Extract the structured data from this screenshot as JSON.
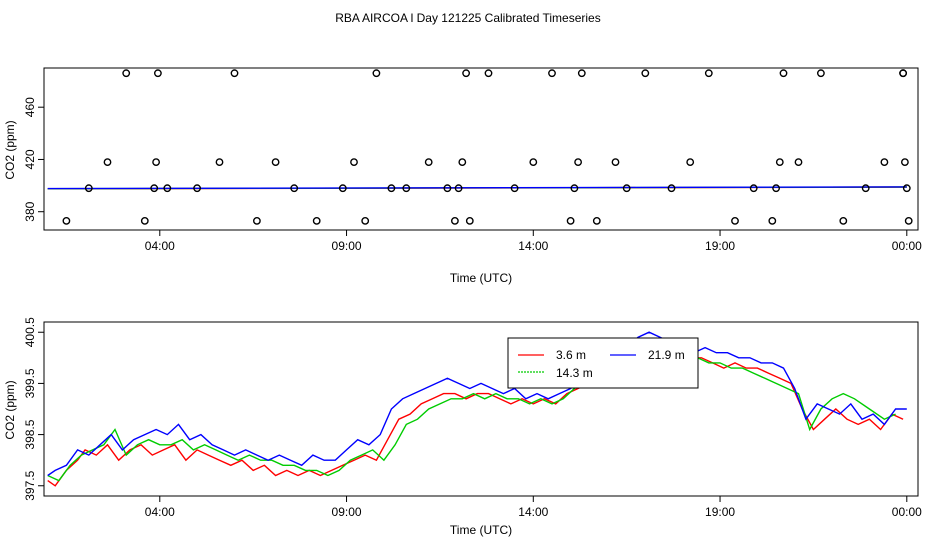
{
  "title": "RBA AIRCOA l  Day 121225  Calibrated Timeseries",
  "chart_data": [
    {
      "type": "scatter+line",
      "xlabel": "Time (UTC)",
      "ylabel": "CO2 (ppm)",
      "x_ticks": [
        4,
        9,
        14,
        19,
        24
      ],
      "x_tick_labels": [
        "04:00",
        "09:00",
        "14:00",
        "19:00",
        "00:00"
      ],
      "xlim": [
        0.9,
        24.3
      ],
      "y_ticks": [
        380,
        420,
        460
      ],
      "y_tick_labels": [
        "380",
        "420",
        "460"
      ],
      "ylim": [
        366,
        490
      ],
      "points": [
        [
          1.5,
          373
        ],
        [
          2.1,
          398
        ],
        [
          2.6,
          418
        ],
        [
          3.1,
          486
        ],
        [
          3.6,
          373
        ],
        [
          4.2,
          398
        ],
        [
          5.0,
          398
        ],
        [
          5.6,
          418
        ],
        [
          6.0,
          486
        ],
        [
          6.6,
          373
        ],
        [
          7.1,
          418
        ],
        [
          7.6,
          398
        ],
        [
          8.2,
          373
        ],
        [
          8.9,
          398
        ],
        [
          9.5,
          373
        ],
        [
          3.85,
          398
        ],
        [
          3.9,
          418
        ],
        [
          3.95,
          486
        ],
        [
          9.2,
          418
        ],
        [
          9.8,
          486
        ],
        [
          10.2,
          398
        ],
        [
          10.6,
          398
        ],
        [
          11.2,
          418
        ],
        [
          11.7,
          398
        ],
        [
          12.3,
          373
        ],
        [
          12.8,
          486
        ],
        [
          13.5,
          398
        ],
        [
          14.0,
          418
        ],
        [
          14.5,
          486
        ],
        [
          11.9,
          373
        ],
        [
          12.0,
          398
        ],
        [
          12.1,
          418
        ],
        [
          12.2,
          486
        ],
        [
          15.0,
          373
        ],
        [
          15.1,
          398
        ],
        [
          15.2,
          418
        ],
        [
          15.3,
          486
        ],
        [
          15.7,
          373
        ],
        [
          16.2,
          418
        ],
        [
          16.5,
          398
        ],
        [
          17.0,
          486
        ],
        [
          17.7,
          398
        ],
        [
          18.2,
          418
        ],
        [
          18.7,
          486
        ],
        [
          19.4,
          373
        ],
        [
          19.9,
          398
        ],
        [
          20.4,
          373
        ],
        [
          20.5,
          398
        ],
        [
          20.6,
          418
        ],
        [
          20.7,
          486
        ],
        [
          21.1,
          418
        ],
        [
          21.7,
          486
        ],
        [
          22.3,
          373
        ],
        [
          22.9,
          398
        ],
        [
          23.4,
          418
        ],
        [
          23.9,
          486
        ],
        [
          23.9,
          486
        ],
        [
          23.95,
          418
        ],
        [
          24.0,
          398
        ],
        [
          24.05,
          373
        ]
      ],
      "series": [
        {
          "color": "#ff0000",
          "x": [
            1.0,
            24.0
          ],
          "y": [
            397.5,
            398.8
          ]
        },
        {
          "color": "#00cc00",
          "x": [
            1.0,
            24.0
          ],
          "y": [
            397.6,
            398.9
          ]
        },
        {
          "color": "#0000ff",
          "x": [
            1.0,
            24.0
          ],
          "y": [
            397.7,
            399.0
          ]
        }
      ]
    },
    {
      "type": "line",
      "xlabel": "Time (UTC)",
      "ylabel": "CO2 (ppm)",
      "x_ticks": [
        4,
        9,
        14,
        19,
        24
      ],
      "x_tick_labels": [
        "04:00",
        "09:00",
        "14:00",
        "19:00",
        "00:00"
      ],
      "xlim": [
        0.9,
        24.3
      ],
      "y_ticks": [
        397.5,
        398.5,
        399.5,
        400.5
      ],
      "y_tick_labels": [
        "397.5",
        "398.5",
        "399.5",
        "400.5"
      ],
      "ylim": [
        397.3,
        400.7
      ],
      "legend": {
        "position": "top-center"
      },
      "series": [
        {
          "name": "3.6 m",
          "color": "#ff0000",
          "x": [
            1.0,
            1.2,
            1.5,
            1.8,
            2.0,
            2.3,
            2.6,
            2.9,
            3.2,
            3.5,
            3.8,
            4.1,
            4.4,
            4.7,
            5.0,
            5.3,
            5.6,
            5.9,
            6.2,
            6.5,
            6.8,
            7.1,
            7.4,
            7.7,
            8.0,
            8.3,
            8.6,
            8.9,
            9.2,
            9.5,
            9.8,
            10.1,
            10.4,
            10.7,
            11.0,
            11.3,
            11.6,
            11.9,
            12.2,
            12.5,
            12.8,
            13.1,
            13.4,
            13.7,
            14.0,
            14.3,
            14.6,
            14.9,
            15.2,
            15.5,
            15.8,
            16.1,
            16.4,
            16.7,
            17.0,
            17.3,
            17.6,
            17.9,
            18.2,
            18.5,
            18.8,
            19.1,
            19.4,
            19.7,
            20.0,
            20.3,
            20.6,
            20.9,
            21.2,
            21.5,
            21.8,
            22.1,
            22.4,
            22.7,
            23.0,
            23.3,
            23.6,
            23.9
          ],
          "y": [
            397.6,
            397.5,
            397.8,
            398.0,
            398.2,
            398.1,
            398.3,
            398.0,
            398.2,
            398.3,
            398.1,
            398.2,
            398.3,
            398.0,
            398.2,
            398.1,
            398.0,
            397.9,
            398.0,
            397.8,
            397.9,
            397.7,
            397.8,
            397.7,
            397.8,
            397.7,
            397.8,
            397.9,
            398.0,
            398.1,
            398.0,
            398.4,
            398.8,
            398.9,
            399.1,
            399.2,
            399.3,
            399.3,
            399.2,
            399.3,
            399.3,
            399.2,
            399.1,
            399.2,
            399.1,
            399.2,
            399.1,
            399.3,
            399.4,
            399.5,
            399.6,
            399.7,
            399.6,
            399.8,
            400.0,
            400.1,
            400.2,
            400.1,
            400.0,
            400.0,
            399.9,
            399.8,
            399.9,
            399.8,
            399.8,
            399.7,
            399.6,
            399.5,
            399.0,
            398.6,
            398.8,
            399.0,
            398.8,
            398.7,
            398.8,
            398.6,
            398.9,
            398.8
          ]
        },
        {
          "name": "14.3 m",
          "color": "#00cc00",
          "x": [
            1.0,
            1.3,
            1.6,
            1.9,
            2.2,
            2.5,
            2.8,
            3.1,
            3.4,
            3.7,
            4.0,
            4.3,
            4.6,
            4.9,
            5.2,
            5.5,
            5.8,
            6.1,
            6.4,
            6.7,
            7.0,
            7.3,
            7.6,
            7.9,
            8.2,
            8.5,
            8.8,
            9.1,
            9.4,
            9.7,
            10.0,
            10.3,
            10.6,
            10.9,
            11.2,
            11.5,
            11.8,
            12.1,
            12.4,
            12.7,
            13.0,
            13.3,
            13.6,
            13.9,
            14.2,
            14.5,
            14.8,
            15.1,
            15.4,
            15.7,
            16.0,
            16.3,
            16.6,
            16.9,
            17.2,
            17.5,
            17.8,
            18.1,
            18.4,
            18.7,
            19.0,
            19.3,
            19.6,
            19.9,
            20.2,
            20.5,
            20.8,
            21.1,
            21.4,
            21.7,
            22.0,
            22.3,
            22.6,
            23.0,
            23.4,
            23.7
          ],
          "y": [
            397.7,
            397.6,
            397.9,
            398.1,
            398.2,
            398.3,
            398.6,
            398.1,
            398.3,
            398.4,
            398.3,
            398.3,
            398.4,
            398.2,
            398.3,
            398.2,
            398.1,
            398.0,
            398.1,
            398.0,
            398.0,
            397.9,
            397.9,
            397.8,
            397.8,
            397.7,
            397.8,
            398.0,
            398.1,
            398.2,
            398.0,
            398.3,
            398.7,
            398.8,
            399.0,
            399.1,
            399.2,
            399.2,
            399.3,
            399.2,
            399.3,
            399.2,
            399.2,
            399.1,
            399.2,
            399.1,
            399.2,
            399.4,
            399.5,
            399.6,
            399.7,
            399.6,
            399.8,
            400.0,
            400.1,
            400.2,
            400.2,
            400.1,
            400.0,
            399.9,
            399.9,
            399.8,
            399.8,
            399.7,
            399.6,
            399.5,
            399.4,
            399.3,
            398.6,
            399.0,
            399.2,
            399.3,
            399.2,
            399.0,
            398.8,
            398.9
          ]
        },
        {
          "name": "21.9 m",
          "color": "#0000ff",
          "x": [
            1.0,
            1.2,
            1.5,
            1.8,
            2.1,
            2.4,
            2.7,
            3.0,
            3.3,
            3.6,
            3.9,
            4.2,
            4.5,
            4.8,
            5.1,
            5.4,
            5.7,
            6.0,
            6.3,
            6.6,
            6.9,
            7.2,
            7.5,
            7.8,
            8.1,
            8.4,
            8.7,
            9.0,
            9.3,
            9.6,
            9.9,
            10.2,
            10.5,
            10.8,
            11.1,
            11.4,
            11.7,
            12.0,
            12.3,
            12.6,
            12.9,
            13.2,
            13.5,
            13.8,
            14.1,
            14.4,
            14.7,
            15.0,
            15.3,
            15.6,
            15.9,
            16.2,
            16.5,
            16.8,
            17.1,
            17.4,
            17.7,
            18.0,
            18.3,
            18.6,
            18.9,
            19.2,
            19.5,
            19.8,
            20.1,
            20.4,
            20.7,
            21.0,
            21.3,
            21.6,
            21.9,
            22.2,
            22.5,
            22.8,
            23.1,
            23.4,
            23.7,
            24.0
          ],
          "y": [
            397.7,
            397.8,
            397.9,
            398.2,
            398.1,
            398.3,
            398.5,
            398.2,
            398.4,
            398.5,
            398.6,
            398.5,
            398.7,
            398.4,
            398.5,
            398.3,
            398.2,
            398.1,
            398.2,
            398.1,
            398.0,
            398.1,
            398.0,
            397.9,
            398.1,
            398.0,
            398.0,
            398.2,
            398.4,
            398.3,
            398.5,
            399.0,
            399.2,
            399.3,
            399.4,
            399.5,
            399.6,
            399.5,
            399.4,
            399.5,
            399.4,
            399.3,
            399.4,
            399.2,
            399.3,
            399.2,
            399.3,
            399.4,
            399.6,
            399.8,
            399.9,
            400.0,
            400.2,
            400.4,
            400.5,
            400.4,
            400.3,
            400.2,
            400.1,
            400.2,
            400.1,
            400.1,
            400.0,
            400.0,
            399.9,
            399.9,
            399.8,
            399.4,
            398.8,
            399.1,
            399.0,
            398.9,
            399.1,
            398.8,
            398.9,
            398.7,
            399.0,
            399.0
          ]
        }
      ]
    }
  ]
}
